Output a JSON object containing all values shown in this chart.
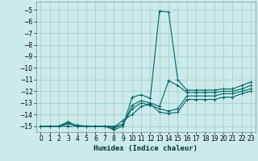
{
  "xlabel": "Humidex (Indice chaleur)",
  "ylabel": "",
  "bg_color": "#cceaea",
  "grid_color": "#aad4d4",
  "line_color": "#006666",
  "xlim": [
    -0.5,
    23.5
  ],
  "ylim": [
    -15.5,
    -4.3
  ],
  "xticks": [
    0,
    1,
    2,
    3,
    4,
    5,
    6,
    7,
    8,
    9,
    10,
    11,
    12,
    13,
    14,
    15,
    16,
    17,
    18,
    19,
    20,
    21,
    22,
    23
  ],
  "yticks": [
    -5,
    -6,
    -7,
    -8,
    -9,
    -10,
    -11,
    -12,
    -13,
    -14,
    -15
  ],
  "series": [
    {
      "x": [
        0,
        1,
        2,
        3,
        4,
        5,
        6,
        7,
        8,
        9,
        10,
        11,
        12,
        13,
        14,
        15,
        16,
        17,
        18,
        19,
        20,
        21,
        22,
        23
      ],
      "y": [
        -15,
        -15,
        -15,
        -14.6,
        -15,
        -15,
        -15,
        -15,
        -15.3,
        -15,
        -12.5,
        -12.3,
        -12.6,
        -5.1,
        -5.2,
        -11.0,
        -11.9,
        -11.9,
        -11.9,
        -11.9,
        -11.8,
        -11.8,
        -11.5,
        -11.2
      ]
    },
    {
      "x": [
        0,
        1,
        2,
        3,
        4,
        5,
        6,
        7,
        8,
        9,
        10,
        11,
        12,
        13,
        14,
        15,
        16,
        17,
        18,
        19,
        20,
        21,
        22,
        23
      ],
      "y": [
        -15,
        -15,
        -15,
        -14.7,
        -15,
        -15,
        -15,
        -15,
        -15,
        -14.9,
        -13.2,
        -12.8,
        -13.0,
        -13.3,
        -11.1,
        -11.5,
        -12.1,
        -12.1,
        -12.1,
        -12.1,
        -12.0,
        -12.0,
        -11.8,
        -11.5
      ]
    },
    {
      "x": [
        0,
        1,
        2,
        3,
        4,
        5,
        6,
        7,
        8,
        9,
        10,
        11,
        12,
        13,
        14,
        15,
        16,
        17,
        18,
        19,
        20,
        21,
        22,
        23
      ],
      "y": [
        -15,
        -15,
        -15,
        -14.8,
        -14.9,
        -15,
        -15,
        -15,
        -15.2,
        -14.8,
        -13.5,
        -13.0,
        -13.2,
        -13.5,
        -13.7,
        -13.5,
        -12.4,
        -12.4,
        -12.4,
        -12.4,
        -12.2,
        -12.2,
        -12.0,
        -11.8
      ]
    },
    {
      "x": [
        0,
        1,
        2,
        3,
        4,
        5,
        6,
        7,
        8,
        9,
        10,
        11,
        12,
        13,
        14,
        15,
        16,
        17,
        18,
        19,
        20,
        21,
        22,
        23
      ],
      "y": [
        -15,
        -15,
        -15,
        -15,
        -15,
        -15,
        -15,
        -15,
        -15.1,
        -14.5,
        -14.0,
        -13.3,
        -13.1,
        -13.8,
        -13.9,
        -13.8,
        -12.7,
        -12.7,
        -12.7,
        -12.7,
        -12.5,
        -12.5,
        -12.2,
        -12.0
      ]
    }
  ]
}
